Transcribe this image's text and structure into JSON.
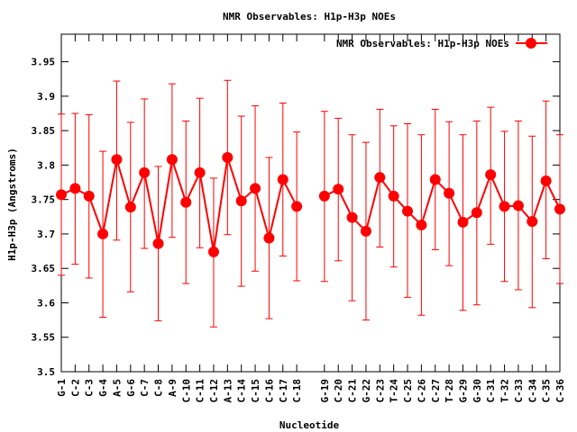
{
  "chart_data": {
    "type": "line",
    "title": "NMR Observables: H1p-H3p NOEs",
    "xlabel": "Nucleotide",
    "ylabel": "H1p-H3p (Angstroms)",
    "ylim": [
      3.5,
      3.99
    ],
    "yticks": [
      3.5,
      3.55,
      3.6,
      3.65,
      3.7,
      3.75,
      3.8,
      3.85,
      3.9,
      3.95
    ],
    "legend_position": "top-right",
    "grid": false,
    "series": [
      {
        "name": "NMR Observables: H1p-H3p NOEs",
        "color": "#ff0000",
        "segments": [
          {
            "categories": [
              "G-1",
              "C-2",
              "C-3",
              "G-4",
              "A-5",
              "G-6",
              "C-7",
              "C-8",
              "A-9",
              "C-10",
              "C-11",
              "C-12",
              "A-13",
              "C-14",
              "C-15",
              "C-16",
              "C-17",
              "C-18"
            ],
            "values": [
              3.757,
              3.766,
              3.755,
              3.7,
              3.808,
              3.739,
              3.789,
              3.686,
              3.808,
              3.746,
              3.789,
              3.674,
              3.811,
              3.748,
              3.766,
              3.694,
              3.779,
              3.74
            ],
            "error_low": [
              3.64,
              3.656,
              3.636,
              3.579,
              3.691,
              3.616,
              3.679,
              3.574,
              3.695,
              3.628,
              3.68,
              3.565,
              3.699,
              3.624,
              3.646,
              3.577,
              3.668,
              3.632
            ],
            "error_high": [
              3.874,
              3.875,
              3.873,
              3.82,
              3.922,
              3.862,
              3.896,
              3.798,
              3.918,
              3.864,
              3.897,
              3.781,
              3.923,
              3.871,
              3.886,
              3.811,
              3.89,
              3.848
            ]
          },
          {
            "categories": [
              "G-19",
              "C-20",
              "C-21",
              "G-22",
              "C-23",
              "T-24",
              "C-25",
              "C-26",
              "C-27",
              "T-28",
              "G-29",
              "G-30",
              "C-31",
              "T-32",
              "C-33",
              "C-34",
              "C-35",
              "C-36"
            ],
            "values": [
              3.755,
              3.765,
              3.724,
              3.704,
              3.782,
              3.755,
              3.733,
              3.713,
              3.779,
              3.759,
              3.717,
              3.731,
              3.786,
              3.74,
              3.741,
              3.718,
              3.777,
              3.736
            ],
            "error_low": [
              3.631,
              3.661,
              3.603,
              3.575,
              3.681,
              3.652,
              3.608,
              3.582,
              3.677,
              3.654,
              3.589,
              3.597,
              3.685,
              3.631,
              3.619,
              3.593,
              3.664,
              3.628
            ],
            "error_high": [
              3.878,
              3.868,
              3.844,
              3.833,
              3.881,
              3.857,
              3.86,
              3.844,
              3.881,
              3.863,
              3.844,
              3.864,
              3.884,
              3.849,
              3.864,
              3.842,
              3.893,
              3.844
            ]
          }
        ]
      }
    ]
  }
}
